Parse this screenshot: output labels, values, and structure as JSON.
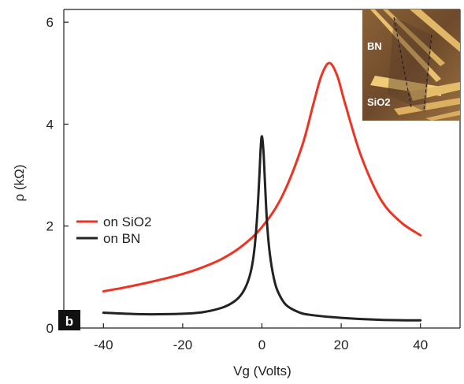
{
  "chart_data": {
    "type": "line",
    "xlabel": "Vg (Volts)",
    "ylabel": "ρ (kΩ)",
    "xlim": [
      -50,
      50
    ],
    "ylim": [
      0,
      6.25
    ],
    "xticks": [
      -40,
      -20,
      0,
      20,
      40
    ],
    "yticks": [
      0,
      2,
      4,
      6
    ],
    "legend_position": "left",
    "panel_label": "b",
    "series": [
      {
        "name": "on SiO2",
        "color": "#ee3322",
        "x": [
          -40,
          -35,
          -30,
          -25,
          -20,
          -15,
          -10,
          -5,
          0,
          5,
          10,
          13,
          15,
          17,
          19,
          21,
          25,
          30,
          35,
          40
        ],
        "y": [
          0.72,
          0.79,
          0.87,
          0.96,
          1.06,
          1.19,
          1.36,
          1.61,
          1.98,
          2.57,
          3.54,
          4.4,
          4.95,
          5.2,
          4.95,
          4.4,
          3.38,
          2.52,
          2.08,
          1.82
        ]
      },
      {
        "name": "on BN",
        "color": "#222222",
        "x": [
          -40,
          -30,
          -20,
          -15,
          -10,
          -7,
          -5,
          -3.5,
          -2.5,
          -1.8,
          -1.2,
          -0.7,
          -0.3,
          0,
          0.4,
          0.8,
          1.3,
          2,
          3,
          4,
          6,
          9,
          12,
          20,
          30,
          40
        ],
        "y": [
          0.3,
          0.27,
          0.28,
          0.31,
          0.4,
          0.52,
          0.68,
          0.92,
          1.22,
          1.62,
          2.2,
          2.9,
          3.55,
          3.76,
          3.45,
          2.8,
          2.05,
          1.45,
          0.98,
          0.72,
          0.46,
          0.32,
          0.26,
          0.2,
          0.16,
          0.15
        ]
      }
    ],
    "inset": {
      "labels": [
        "BN",
        "SiO2"
      ]
    }
  }
}
